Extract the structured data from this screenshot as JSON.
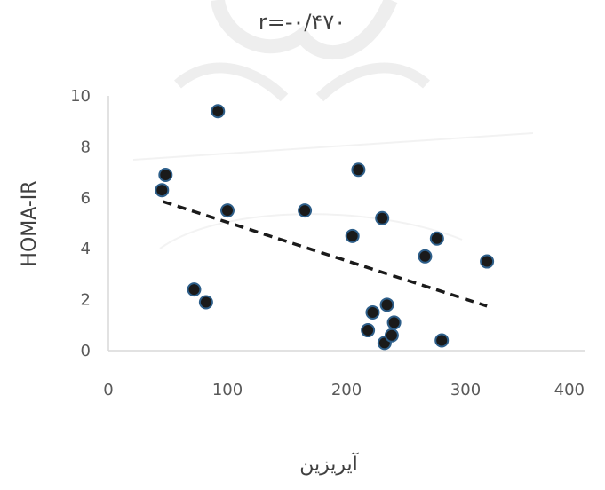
{
  "chart_data": {
    "type": "scatter",
    "title": "r=-۰/۴۷۰",
    "xlabel": "آیریزین",
    "ylabel": "HOMA-IR",
    "xlim": [
      0,
      400
    ],
    "ylim": [
      0,
      10
    ],
    "x_ticks": [
      "0",
      "100",
      "200",
      "300",
      "400"
    ],
    "y_ticks": [
      "0",
      "2",
      "4",
      "6",
      "8",
      "10"
    ],
    "grid": false,
    "trendline": {
      "style": "dashed",
      "x": [
        46,
        318
      ],
      "y": [
        5.85,
        1.75
      ]
    },
    "points": [
      {
        "x": 45,
        "y": 6.3
      },
      {
        "x": 48,
        "y": 6.9
      },
      {
        "x": 72,
        "y": 2.4
      },
      {
        "x": 82,
        "y": 1.9
      },
      {
        "x": 92,
        "y": 9.4
      },
      {
        "x": 100,
        "y": 5.5
      },
      {
        "x": 165,
        "y": 5.5
      },
      {
        "x": 205,
        "y": 4.5
      },
      {
        "x": 210,
        "y": 7.1
      },
      {
        "x": 218,
        "y": 0.8
      },
      {
        "x": 222,
        "y": 1.5
      },
      {
        "x": 230,
        "y": 5.2
      },
      {
        "x": 232,
        "y": 0.3
      },
      {
        "x": 234,
        "y": 1.8
      },
      {
        "x": 238,
        "y": 0.6
      },
      {
        "x": 240,
        "y": 1.1
      },
      {
        "x": 266,
        "y": 3.7
      },
      {
        "x": 276,
        "y": 4.4
      },
      {
        "x": 280,
        "y": 0.4
      },
      {
        "x": 318,
        "y": 3.5
      }
    ]
  },
  "colors": {
    "point_fill": "#1a1a1a",
    "point_stroke": "#2e5f8a",
    "trendline": "#1a1a1a",
    "axis": "#d9d9d9",
    "watermark": "#d6d6d6"
  }
}
